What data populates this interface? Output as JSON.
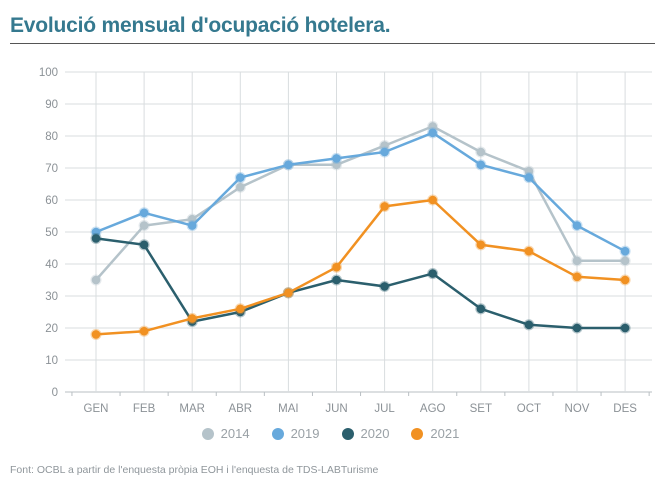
{
  "title": "Evolució mensual d'ocupació hotelera.",
  "footer": "Font: OCBL a partir de l'enquesta pròpia EOH i l'enquesta de TDS-LABTurisme",
  "colors": {
    "title_text": "#35798f",
    "title_underline": "#555555",
    "grid": "#d9ddDF",
    "axis_line": "#b9bfc3",
    "axis_text": "#8b9196",
    "legend_text": "#9aa1a6",
    "footer_text": "#8f969b"
  },
  "chart_data": {
    "type": "line",
    "title": "Evolució mensual d'ocupació hotelera.",
    "xlabel": "",
    "ylabel": "",
    "categories": [
      "GEN",
      "FEB",
      "MAR",
      "ABR",
      "MAI",
      "JUN",
      "JUL",
      "AGO",
      "SET",
      "OCT",
      "NOV",
      "DES"
    ],
    "series": [
      {
        "name": "2014",
        "color": "#b5c3ca",
        "values": [
          35,
          52,
          54,
          64,
          71,
          71,
          77,
          83,
          75,
          69,
          41,
          41
        ]
      },
      {
        "name": "2019",
        "color": "#67a9dc",
        "values": [
          50,
          56,
          52,
          67,
          71,
          73,
          75,
          81,
          71,
          67,
          52,
          44
        ]
      },
      {
        "name": "2020",
        "color": "#2b5f6d",
        "values": [
          48,
          46,
          22,
          25,
          31,
          35,
          33,
          37,
          26,
          21,
          20,
          20
        ]
      },
      {
        "name": "2021",
        "color": "#f19122",
        "values": [
          18,
          19,
          23,
          26,
          31,
          39,
          58,
          60,
          46,
          44,
          36,
          35
        ]
      }
    ],
    "ylim": [
      0,
      100
    ],
    "ytick_step": 10,
    "grid": true,
    "legend_position": "bottom"
  }
}
